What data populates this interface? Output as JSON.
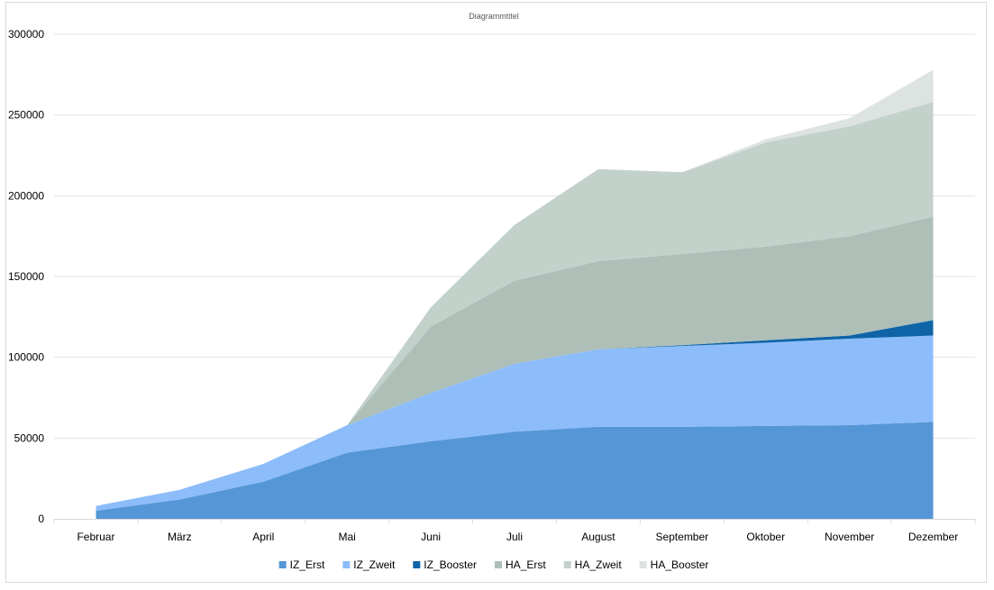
{
  "chart_data": {
    "type": "area",
    "stacked": true,
    "title": "Diagrammtitel",
    "categories": [
      "Februar",
      "März",
      "April",
      "Mai",
      "Juni",
      "Juli",
      "August",
      "September",
      "Oktober",
      "November",
      "Dezember"
    ],
    "ylim": [
      0,
      300000
    ],
    "yticks": [
      0,
      50000,
      100000,
      150000,
      200000,
      250000,
      300000
    ],
    "grid": true,
    "legend_position": "bottom",
    "series": [
      {
        "name": "IZ_Erst",
        "color": "#5596d6",
        "values": [
          5000,
          12000,
          23000,
          41000,
          48000,
          54000,
          57000,
          57000,
          57500,
          58000,
          60000
        ]
      },
      {
        "name": "IZ_Zweit",
        "color": "#8cbcfa",
        "values": [
          3000,
          6000,
          11000,
          17000,
          30000,
          42000,
          48000,
          50000,
          51500,
          53500,
          53500
        ]
      },
      {
        "name": "IZ_Booster",
        "color": "#0f64a8",
        "values": [
          0,
          0,
          0,
          0,
          0,
          0,
          0,
          500,
          1500,
          2000,
          9500
        ]
      },
      {
        "name": "HA_Erst",
        "color": "#aebfb8",
        "values": [
          0,
          0,
          0,
          0,
          41000,
          51500,
          54500,
          56500,
          58000,
          61500,
          64000
        ]
      },
      {
        "name": "HA_Zweit",
        "color": "#c3d1cb",
        "values": [
          0,
          0,
          0,
          0,
          12000,
          34500,
          57000,
          50500,
          64500,
          68000,
          71000
        ]
      },
      {
        "name": "HA_Booster",
        "color": "#dde3e0",
        "values": [
          0,
          0,
          0,
          0,
          0,
          0,
          0,
          0,
          2000,
          5000,
          20000
        ]
      }
    ]
  }
}
